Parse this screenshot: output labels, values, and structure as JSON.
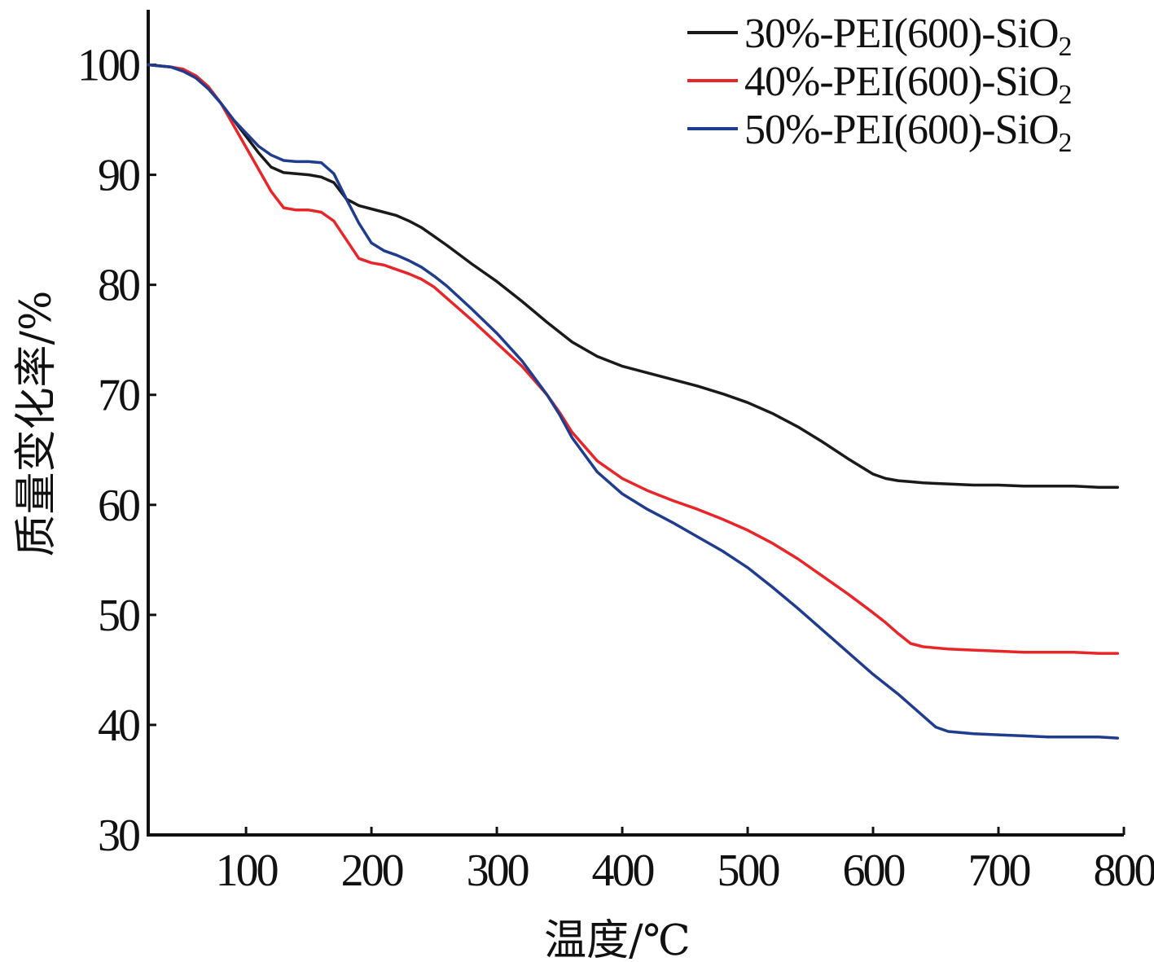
{
  "chart_data": {
    "type": "line",
    "xlabel": "温度/℃",
    "ylabel": "质量变化率/%",
    "xlim": [
      22,
      800
    ],
    "ylim": [
      30,
      105
    ],
    "xticks": [
      100,
      200,
      300,
      400,
      500,
      600,
      700,
      800
    ],
    "yticks": [
      30,
      40,
      50,
      60,
      70,
      80,
      90,
      100
    ],
    "grid": false,
    "legend_position": "top-right",
    "series": [
      {
        "name": "30%-PEI(600)-SiO2",
        "name_main": "30%-PEI(600)-SiO",
        "name_sub": "2",
        "color": "#1a1a1a",
        "x": [
          22,
          40,
          50,
          60,
          70,
          80,
          90,
          100,
          110,
          120,
          130,
          140,
          150,
          160,
          170,
          180,
          190,
          200,
          210,
          220,
          230,
          240,
          250,
          260,
          280,
          300,
          320,
          340,
          360,
          380,
          400,
          420,
          440,
          460,
          480,
          500,
          520,
          540,
          560,
          580,
          600,
          610,
          620,
          630,
          640,
          660,
          680,
          700,
          720,
          740,
          760,
          780,
          795
        ],
        "y": [
          100,
          99.8,
          99.5,
          99,
          98,
          96.5,
          95,
          93.5,
          92,
          90.7,
          90.2,
          90.1,
          90.0,
          89.8,
          89.3,
          87.8,
          87.2,
          86.9,
          86.6,
          86.3,
          85.8,
          85.2,
          84.4,
          83.6,
          81.9,
          80.3,
          78.5,
          76.6,
          74.8,
          73.5,
          72.6,
          72.0,
          71.4,
          70.8,
          70.1,
          69.3,
          68.3,
          67.1,
          65.7,
          64.2,
          62.8,
          62.4,
          62.2,
          62.1,
          62.0,
          61.9,
          61.8,
          61.8,
          61.7,
          61.7,
          61.7,
          61.6,
          61.6
        ]
      },
      {
        "name": "40%-PEI(600)-SiO2",
        "name_main": "40%-PEI(600)-SiO",
        "name_sub": "2",
        "color": "#e8262a",
        "x": [
          22,
          40,
          50,
          60,
          70,
          80,
          90,
          100,
          110,
          120,
          130,
          140,
          150,
          160,
          170,
          180,
          190,
          200,
          210,
          220,
          230,
          240,
          250,
          260,
          280,
          300,
          320,
          340,
          350,
          360,
          380,
          400,
          420,
          440,
          460,
          480,
          500,
          520,
          540,
          560,
          580,
          600,
          610,
          620,
          630,
          640,
          660,
          680,
          700,
          720,
          740,
          760,
          780,
          795
        ],
        "y": [
          100,
          99.8,
          99.6,
          99,
          98,
          96.5,
          94.5,
          92.5,
          90.5,
          88.5,
          87,
          86.8,
          86.8,
          86.6,
          85.8,
          84.1,
          82.4,
          82.0,
          81.8,
          81.4,
          81.0,
          80.5,
          79.8,
          78.8,
          76.8,
          74.7,
          72.6,
          70.0,
          68.4,
          66.6,
          64.0,
          62.4,
          61.3,
          60.4,
          59.6,
          58.7,
          57.7,
          56.5,
          55.1,
          53.5,
          51.9,
          50.2,
          49.3,
          48.3,
          47.4,
          47.1,
          46.9,
          46.8,
          46.7,
          46.6,
          46.6,
          46.6,
          46.5,
          46.5
        ]
      },
      {
        "name": "50%-PEI(600)-SiO2",
        "name_main": "50%-PEI(600)-SiO",
        "name_sub": "2",
        "color": "#1f3c8f",
        "x": [
          22,
          40,
          50,
          60,
          70,
          80,
          90,
          100,
          110,
          120,
          130,
          140,
          150,
          160,
          170,
          180,
          190,
          200,
          210,
          220,
          230,
          240,
          250,
          260,
          280,
          300,
          320,
          340,
          350,
          360,
          380,
          400,
          420,
          440,
          460,
          480,
          500,
          520,
          540,
          560,
          580,
          600,
          620,
          640,
          650,
          660,
          680,
          700,
          720,
          740,
          760,
          780,
          795
        ],
        "y": [
          100,
          99.8,
          99.4,
          98.8,
          97.8,
          96.5,
          95,
          93.8,
          92.6,
          91.8,
          91.3,
          91.2,
          91.2,
          91.1,
          90.1,
          87.8,
          85.6,
          83.8,
          83.1,
          82.7,
          82.2,
          81.6,
          80.8,
          79.9,
          77.8,
          75.6,
          73.1,
          70.0,
          68.2,
          66.1,
          63.0,
          61.0,
          59.6,
          58.4,
          57.1,
          55.8,
          54.3,
          52.5,
          50.6,
          48.6,
          46.6,
          44.6,
          42.8,
          40.8,
          39.8,
          39.4,
          39.2,
          39.1,
          39.0,
          38.9,
          38.9,
          38.9,
          38.8
        ]
      }
    ]
  }
}
